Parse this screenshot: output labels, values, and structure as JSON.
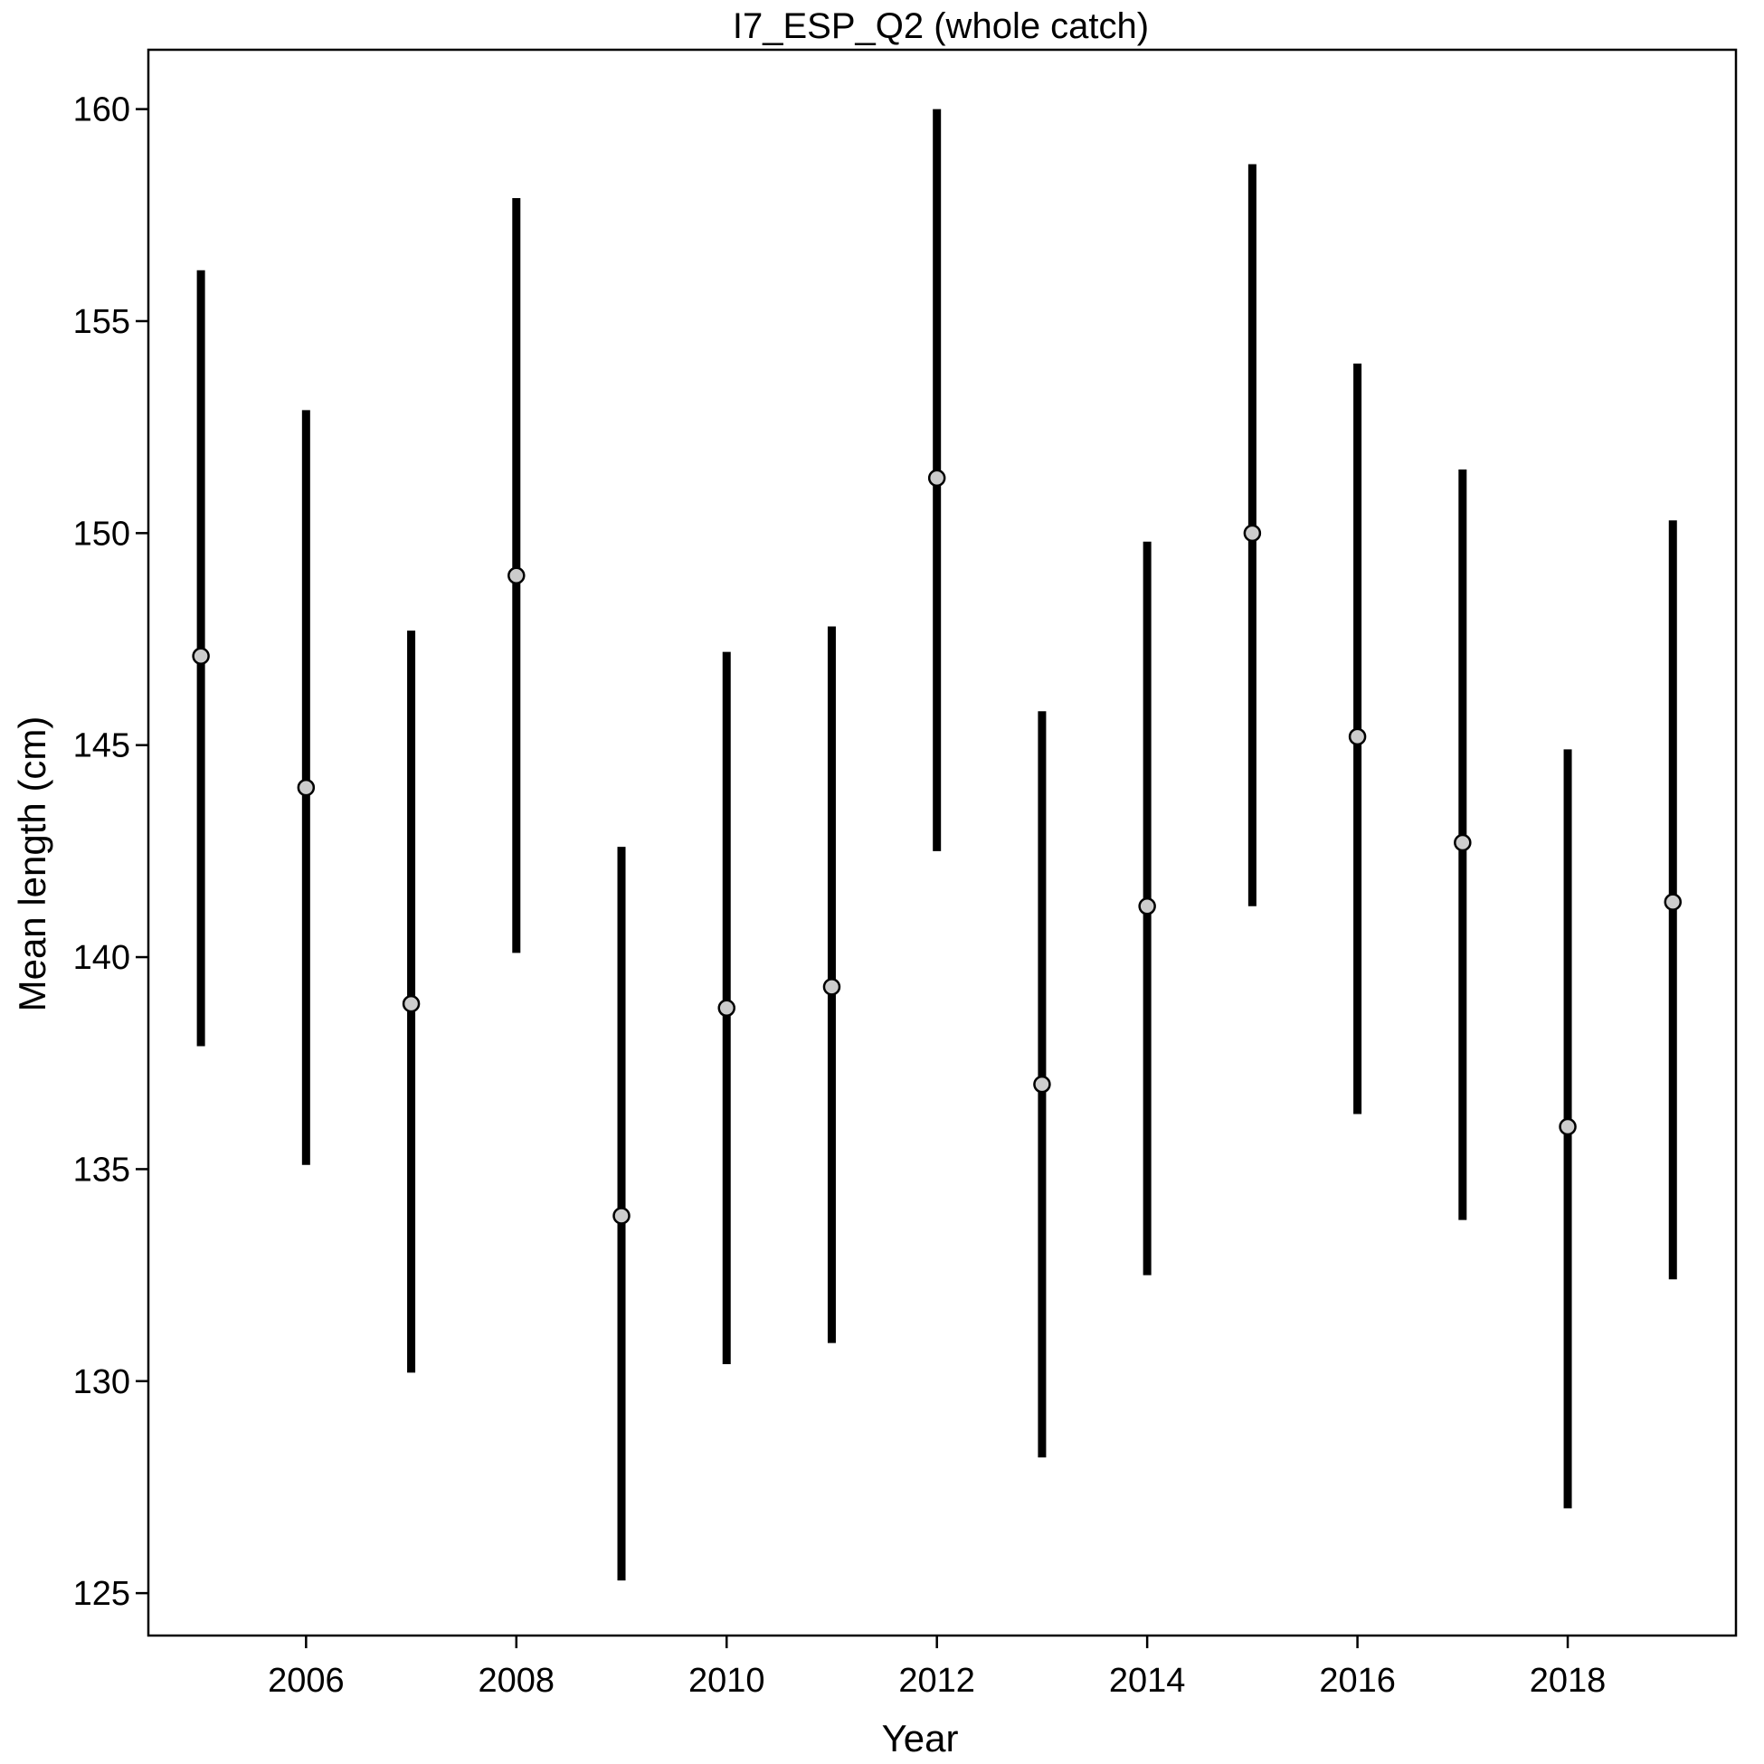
{
  "chart_data": {
    "type": "scatter",
    "title": "I7_ESP_Q2 (whole catch)",
    "xlabel": "Year",
    "ylabel": "Mean length (cm)",
    "xlim": [
      2004.5,
      2019.6
    ],
    "ylim": [
      124.0,
      161.4
    ],
    "x_ticks": [
      2006,
      2008,
      2010,
      2012,
      2014,
      2016,
      2018
    ],
    "y_ticks": [
      125,
      130,
      135,
      140,
      145,
      150,
      155,
      160
    ],
    "grid": false,
    "series": [
      {
        "points": [
          {
            "x": 2005,
            "y": 147.1,
            "low": 137.9,
            "high": 156.2
          },
          {
            "x": 2006,
            "y": 144.0,
            "low": 135.1,
            "high": 152.9
          },
          {
            "x": 2007,
            "y": 138.9,
            "low": 130.2,
            "high": 147.7
          },
          {
            "x": 2008,
            "y": 149.0,
            "low": 140.1,
            "high": 157.9
          },
          {
            "x": 2009,
            "y": 133.9,
            "low": 125.3,
            "high": 142.6
          },
          {
            "x": 2010,
            "y": 138.8,
            "low": 130.4,
            "high": 147.2
          },
          {
            "x": 2011,
            "y": 139.3,
            "low": 130.9,
            "high": 147.8
          },
          {
            "x": 2012,
            "y": 151.3,
            "low": 142.5,
            "high": 160.0
          },
          {
            "x": 2013,
            "y": 137.0,
            "low": 128.2,
            "high": 145.8
          },
          {
            "x": 2014,
            "y": 141.2,
            "low": 132.5,
            "high": 149.8
          },
          {
            "x": 2015,
            "y": 150.0,
            "low": 141.2,
            "high": 158.7
          },
          {
            "x": 2016,
            "y": 145.2,
            "low": 136.3,
            "high": 154.0
          },
          {
            "x": 2017,
            "y": 142.7,
            "low": 133.8,
            "high": 151.5
          },
          {
            "x": 2018,
            "y": 136.0,
            "low": 127.0,
            "high": 144.9
          },
          {
            "x": 2019,
            "y": 141.3,
            "low": 132.4,
            "high": 150.3
          }
        ]
      }
    ]
  }
}
